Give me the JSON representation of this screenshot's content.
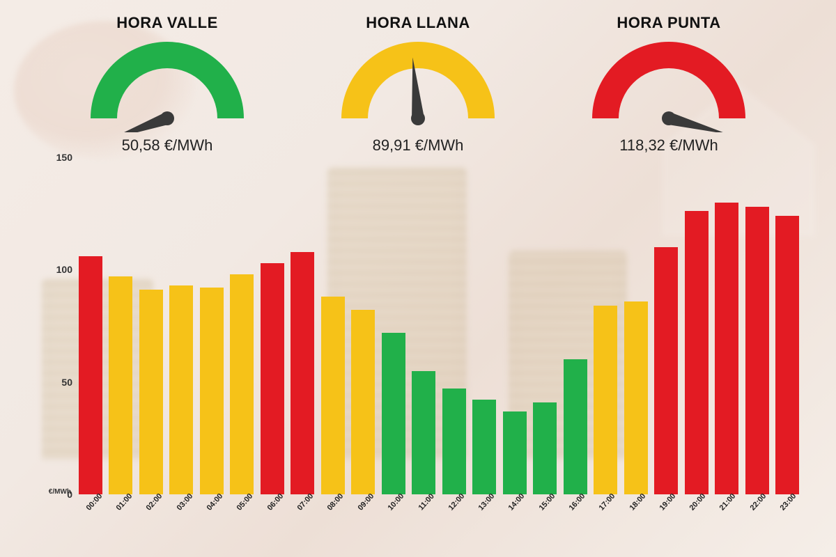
{
  "colors": {
    "green": "#21b04a",
    "yellow": "#f6c218",
    "red": "#e31b23",
    "needle": "#3a3a3a",
    "text": "#111111"
  },
  "typography": {
    "gauge_title_fontsize": 22,
    "gauge_price_fontsize": 22,
    "ytick_fontsize": 14,
    "xtick_fontsize": 11
  },
  "gauges": [
    {
      "key": "valle",
      "title": "HORA VALLE",
      "price": "50,58 €/MWh",
      "arc_color": "#21b04a",
      "needle_angle_deg": 200
    },
    {
      "key": "llana",
      "title": "HORA LLANA",
      "price": "89,91 €/MWh",
      "arc_color": "#f6c218",
      "needle_angle_deg": 95
    },
    {
      "key": "punta",
      "title": "HORA PUNTA",
      "price": "118,32 €/MWh",
      "arc_color": "#e31b23",
      "needle_angle_deg": -15
    }
  ],
  "chart": {
    "type": "bar",
    "ylabel": "€/MWh",
    "ylim": [
      0,
      150
    ],
    "yticks": [
      0,
      50,
      100,
      150
    ],
    "bar_width_pct": 86,
    "categories": [
      "00:00",
      "01:00",
      "02:00",
      "03:00",
      "04:00",
      "05:00",
      "06:00",
      "07:00",
      "08:00",
      "09:00",
      "10:00",
      "11:00",
      "12:00",
      "13:00",
      "14:00",
      "15:00",
      "16:00",
      "17:00",
      "18:00",
      "19:00",
      "20:00",
      "21:00",
      "22:00",
      "23:00"
    ],
    "values": [
      106,
      97,
      91,
      93,
      92,
      98,
      103,
      108,
      88,
      82,
      72,
      55,
      47,
      42,
      37,
      41,
      60,
      84,
      86,
      110,
      126,
      130,
      128,
      124
    ],
    "bar_colors": [
      "#e31b23",
      "#f6c218",
      "#f6c218",
      "#f6c218",
      "#f6c218",
      "#f6c218",
      "#e31b23",
      "#e31b23",
      "#f6c218",
      "#f6c218",
      "#21b04a",
      "#21b04a",
      "#21b04a",
      "#21b04a",
      "#21b04a",
      "#21b04a",
      "#21b04a",
      "#f6c218",
      "#f6c218",
      "#e31b23",
      "#e31b23",
      "#e31b23",
      "#e31b23",
      "#e31b23"
    ]
  }
}
